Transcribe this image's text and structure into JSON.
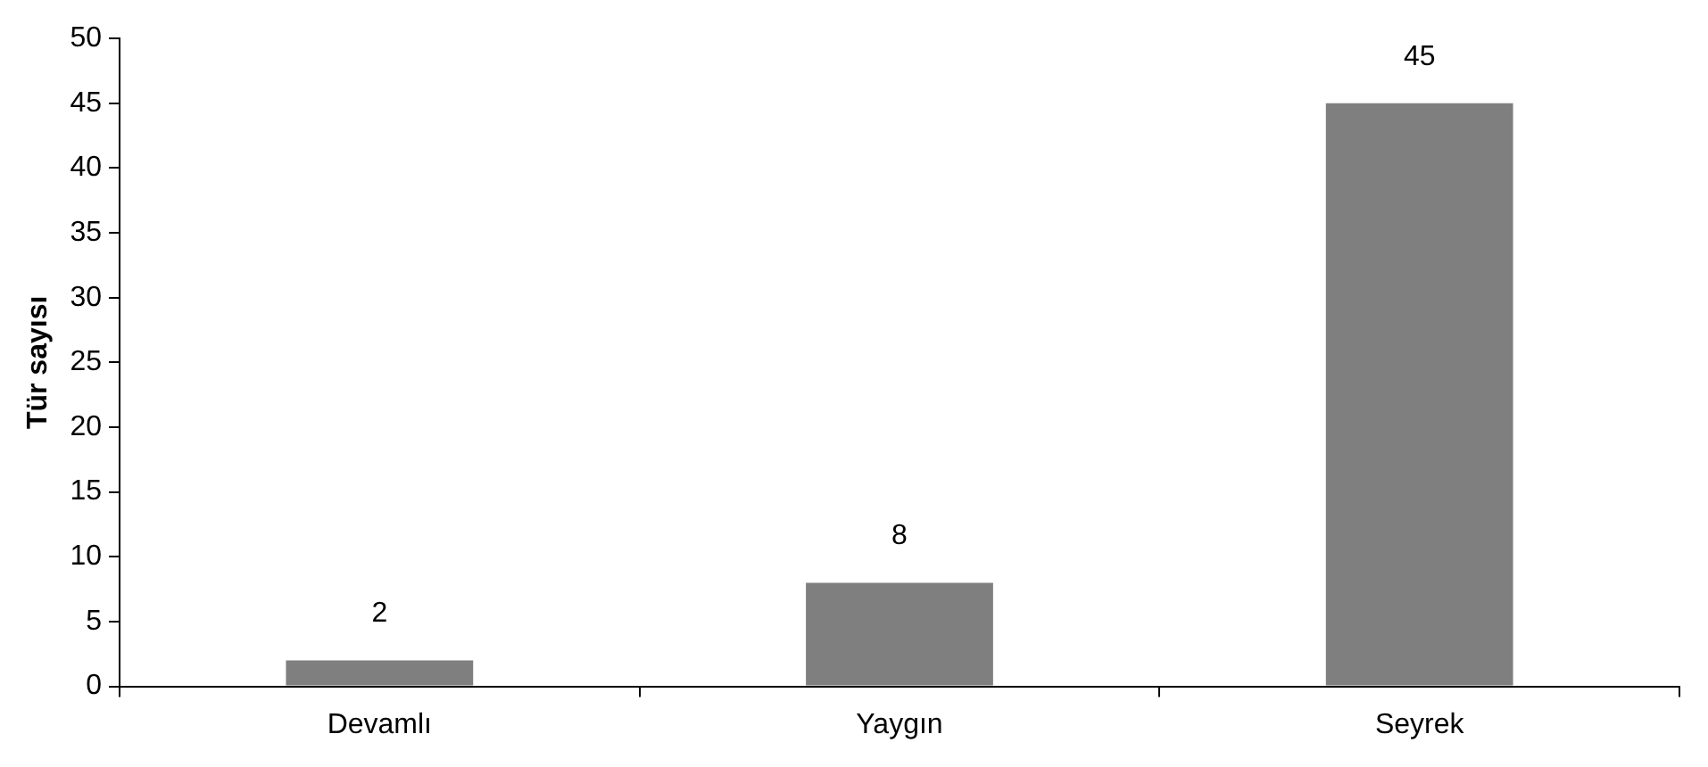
{
  "chart_data": {
    "type": "bar",
    "ylabel": "Tür sayısı",
    "categories": [
      "Devamlı",
      "Yaygın",
      "Seyrek"
    ],
    "values": [
      2,
      8,
      45
    ],
    "color": "#7f7f7f",
    "ylim": [
      0,
      50
    ],
    "yticks": [
      0,
      5,
      10,
      15,
      20,
      25,
      30,
      35,
      40,
      45,
      50
    ],
    "grid": false,
    "legend": false,
    "data_labels": true
  }
}
